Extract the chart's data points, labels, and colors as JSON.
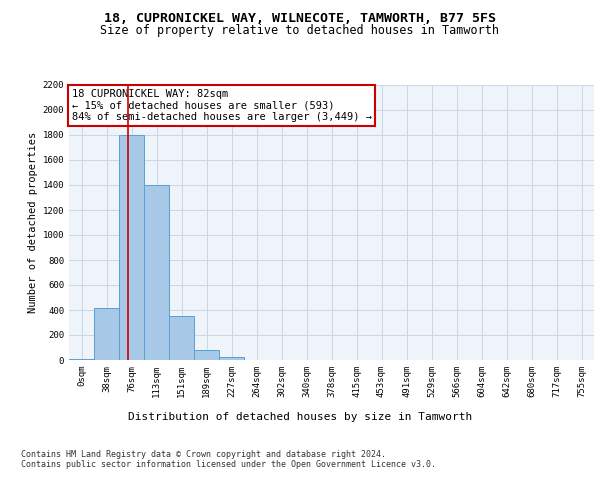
{
  "title": "18, CUPRONICKEL WAY, WILNECOTE, TAMWORTH, B77 5FS",
  "subtitle": "Size of property relative to detached houses in Tamworth",
  "xlabel": "Distribution of detached houses by size in Tamworth",
  "ylabel": "Number of detached properties",
  "bin_labels": [
    "0sqm",
    "38sqm",
    "76sqm",
    "113sqm",
    "151sqm",
    "189sqm",
    "227sqm",
    "264sqm",
    "302sqm",
    "340sqm",
    "378sqm",
    "415sqm",
    "453sqm",
    "491sqm",
    "529sqm",
    "566sqm",
    "604sqm",
    "642sqm",
    "680sqm",
    "717sqm",
    "755sqm"
  ],
  "bar_heights": [
    10,
    420,
    1800,
    1400,
    350,
    80,
    25,
    0,
    0,
    0,
    0,
    0,
    0,
    0,
    0,
    0,
    0,
    0,
    0,
    0,
    0
  ],
  "bar_color": "#a8c8e8",
  "bar_edge_color": "#5a9fd4",
  "annotation_box_text": "18 CUPRONICKEL WAY: 82sqm\n← 15% of detached houses are smaller (593)\n84% of semi-detached houses are larger (3,449) →",
  "annotation_box_color": "#ffffff",
  "annotation_box_edge_color": "#cc0000",
  "vline_x": 1.85,
  "vline_color": "#cc0000",
  "ylim": [
    0,
    2200
  ],
  "yticks": [
    0,
    200,
    400,
    600,
    800,
    1000,
    1200,
    1400,
    1600,
    1800,
    2000,
    2200
  ],
  "grid_color": "#c8d8e8",
  "background_color": "#eef4fa",
  "footer_text": "Contains HM Land Registry data © Crown copyright and database right 2024.\nContains public sector information licensed under the Open Government Licence v3.0.",
  "title_fontsize": 9.5,
  "subtitle_fontsize": 8.5,
  "xlabel_fontsize": 8,
  "ylabel_fontsize": 7.5,
  "tick_fontsize": 6.5,
  "annotation_fontsize": 7.5,
  "footer_fontsize": 6.0
}
